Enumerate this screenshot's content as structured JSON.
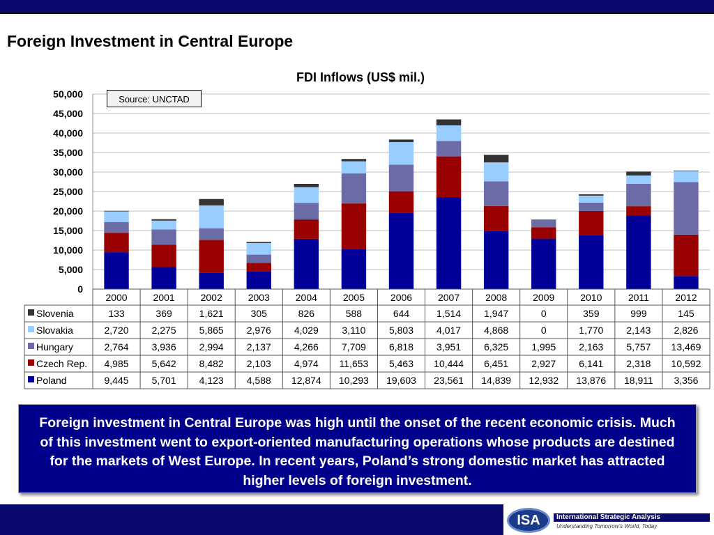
{
  "slide": {
    "title": "Foreign Investment in Central Europe",
    "text": "Foreign investment in Central Europe was high until the onset of the recent economic crisis.  Much of this investment went to export-oriented manufacturing operations whose products are destined for the markets of West Europe.  In recent years, Poland’s strong domestic market has attracted higher levels of foreign investment."
  },
  "chart_data": {
    "type": "bar",
    "stacked": true,
    "title": "FDI Inflows (US$ mil.)",
    "source_note": "Source: UNCTAD",
    "categories": [
      "2000",
      "2001",
      "2002",
      "2003",
      "2004",
      "2005",
      "2006",
      "2007",
      "2008",
      "2009",
      "2010",
      "2011",
      "2012"
    ],
    "ylim": [
      0,
      50000
    ],
    "yticks": [
      0,
      5000,
      10000,
      15000,
      20000,
      25000,
      30000,
      35000,
      40000,
      45000,
      50000
    ],
    "ytick_labels": [
      "0",
      "5,000",
      "10,000",
      "15,000",
      "20,000",
      "25,000",
      "30,000",
      "35,000",
      "40,000",
      "45,000",
      "50,000"
    ],
    "grid": true,
    "legend": "data-table",
    "series": [
      {
        "name": "Poland",
        "color": "#000099",
        "values": [
          9445,
          5701,
          4123,
          4588,
          12874,
          10293,
          19603,
          23561,
          14839,
          12932,
          13876,
          18911,
          3356
        ],
        "labels": [
          "9,445",
          "5,701",
          "4,123",
          "4,588",
          "12,874",
          "10,293",
          "19,603",
          "23,561",
          "14,839",
          "12,932",
          "13,876",
          "18,911",
          "3,356"
        ]
      },
      {
        "name": "Czech Rep.",
        "color": "#990000",
        "values": [
          4985,
          5642,
          8482,
          2103,
          4974,
          11653,
          5463,
          10444,
          6451,
          2927,
          6141,
          2318,
          10592
        ],
        "labels": [
          "4,985",
          "5,642",
          "8,482",
          "2,103",
          "4,974",
          "11,653",
          "5,463",
          "10,444",
          "6,451",
          "2,927",
          "6,141",
          "2,318",
          "10,592"
        ]
      },
      {
        "name": "Hungary",
        "color": "#6b6ba6",
        "values": [
          2764,
          3936,
          2994,
          2137,
          4266,
          7709,
          6818,
          3951,
          6325,
          1995,
          2163,
          5757,
          13469
        ],
        "labels": [
          "2,764",
          "3,936",
          "2,994",
          "2,137",
          "4,266",
          "7,709",
          "6,818",
          "3,951",
          "6,325",
          "1,995",
          "2,163",
          "5,757",
          "13,469"
        ]
      },
      {
        "name": "Slovakia",
        "color": "#99ccff",
        "values": [
          2720,
          2275,
          5865,
          2976,
          4029,
          3110,
          5803,
          4017,
          4868,
          0,
          1770,
          2143,
          2826
        ],
        "labels": [
          "2,720",
          "2,275",
          "5,865",
          "2,976",
          "4,029",
          "3,110",
          "5,803",
          "4,017",
          "4,868",
          "0",
          "1,770",
          "2,143",
          "2,826"
        ]
      },
      {
        "name": "Slovenia",
        "color": "#333333",
        "values": [
          133,
          369,
          1621,
          305,
          826,
          588,
          644,
          1514,
          1947,
          0,
          359,
          999,
          145
        ],
        "labels": [
          "133",
          "369",
          "1,621",
          "305",
          "826",
          "588",
          "644",
          "1,514",
          "1,947",
          "0",
          "359",
          "999",
          "145"
        ]
      }
    ],
    "table_row_order": [
      "Slovenia",
      "Slovakia",
      "Hungary",
      "Czech Rep.",
      "Poland"
    ]
  },
  "footer": {
    "logo_letters": "ISA",
    "company_name": "International Strategic Analysis",
    "tagline": "Understanding Tomorrow’s World, Today"
  }
}
